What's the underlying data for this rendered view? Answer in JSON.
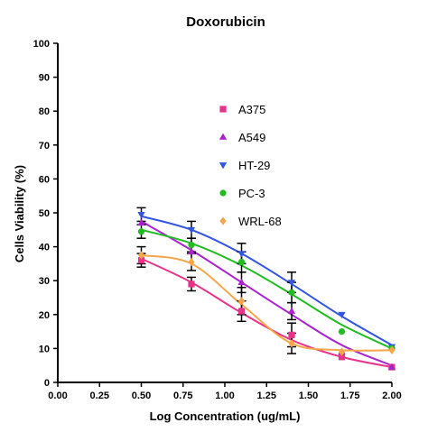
{
  "chart_data": {
    "type": "scatter",
    "title": "Doxorubicin",
    "xlabel": "Log Concentration (ug/mL)",
    "ylabel": "Cells Viability (%)",
    "xlim": [
      0,
      2
    ],
    "ylim": [
      0,
      100
    ],
    "xticks": [
      "0.00",
      "0.25",
      "0.50",
      "0.75",
      "1.00",
      "1.25",
      "1.50",
      "1.75",
      "2.00"
    ],
    "yticks": [
      "0",
      "10",
      "20",
      "30",
      "40",
      "50",
      "60",
      "70",
      "80",
      "90",
      "100"
    ],
    "grid": false,
    "legend_position": "center",
    "x": [
      0.5,
      0.8,
      1.1,
      1.4,
      1.7,
      2.0
    ],
    "series": [
      {
        "name": "A375",
        "color": "#e8338a",
        "marker": "square",
        "values": [
          36,
          29,
          21,
          14,
          7.5,
          4.5
        ],
        "errors": [
          2,
          2,
          3,
          3.5,
          0,
          0
        ],
        "fit": [
          36.5,
          29.5,
          20.5,
          12.5,
          7.5,
          4.5
        ]
      },
      {
        "name": "A549",
        "color": "#aa22cc",
        "marker": "triangle-up",
        "values": [
          47,
          38.5,
          29.5,
          21,
          9,
          4.5
        ],
        "errors": [
          0,
          0,
          3,
          2.5,
          0,
          0
        ],
        "fit": [
          47.5,
          39,
          29.5,
          20,
          11,
          5
        ]
      },
      {
        "name": "HT-29",
        "color": "#3355dd",
        "marker": "triangle-down",
        "values": [
          49.5,
          45,
          38,
          29.5,
          20,
          10.5
        ],
        "errors": [
          2,
          2.5,
          3,
          3,
          0,
          0
        ],
        "fit": [
          49,
          45,
          38,
          29,
          19.5,
          11
        ]
      },
      {
        "name": "PC-3",
        "color": "#22bb22",
        "marker": "circle",
        "values": [
          44.5,
          40.5,
          35.5,
          26.5,
          15,
          10
        ],
        "errors": [
          2,
          2,
          3,
          3,
          0,
          0
        ],
        "fit": [
          45,
          41,
          34.5,
          26,
          17,
          10
        ]
      },
      {
        "name": "WRL-68",
        "color": "#f5a64a",
        "marker": "diamond",
        "values": [
          37.5,
          35.5,
          24,
          11.5,
          9,
          9.5
        ],
        "errors": [
          2.5,
          2.5,
          4,
          3,
          0,
          0
        ],
        "fit": [
          37.5,
          35,
          23,
          11.5,
          9.5,
          9.5
        ]
      }
    ]
  }
}
